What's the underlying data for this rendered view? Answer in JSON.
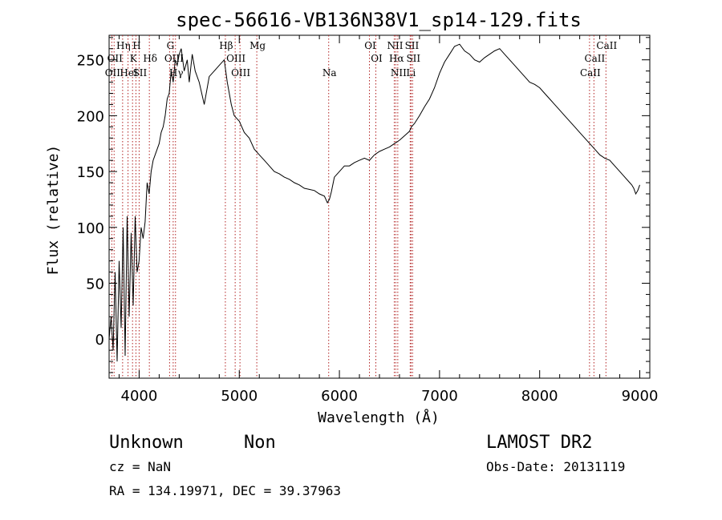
{
  "chart_data": {
    "type": "line",
    "title": "spec-56616-VB136N38V1_sp14-129.fits",
    "xlabel": "Wavelength (Å)",
    "ylabel": "Flux (relative)",
    "xlim": [
      3700,
      9100
    ],
    "ylim": [
      -35,
      272
    ],
    "xticks": [
      4000,
      5000,
      6000,
      7000,
      8000,
      9000
    ],
    "yticks": [
      0,
      50,
      100,
      150,
      200,
      250
    ],
    "grid": false,
    "series": [
      {
        "x": [
          3700,
          3720,
          3740,
          3760,
          3780,
          3800,
          3820,
          3840,
          3860,
          3880,
          3900,
          3920,
          3940,
          3960,
          3980,
          4000,
          4020,
          4040,
          4060,
          4080,
          4100,
          4120,
          4140,
          4160,
          4180,
          4200,
          4220,
          4240,
          4260,
          4280,
          4300,
          4320,
          4340,
          4360,
          4380,
          4400,
          4420,
          4450,
          4480,
          4500,
          4530,
          4560,
          4600,
          4650,
          4700,
          4750,
          4800,
          4850,
          4880,
          4900,
          4920,
          4950,
          5000,
          5050,
          5100,
          5150,
          5200,
          5250,
          5300,
          5350,
          5400,
          5450,
          5500,
          5550,
          5600,
          5650,
          5700,
          5750,
          5800,
          5850,
          5880,
          5900,
          5920,
          5950,
          6000,
          6050,
          6100,
          6150,
          6200,
          6250,
          6300,
          6350,
          6400,
          6450,
          6500,
          6550,
          6600,
          6650,
          6700,
          6720,
          6750,
          6800,
          6850,
          6900,
          6950,
          7000,
          7050,
          7100,
          7150,
          7200,
          7250,
          7300,
          7350,
          7400,
          7450,
          7500,
          7550,
          7600,
          7650,
          7700,
          7750,
          7800,
          7850,
          7900,
          7950,
          8000,
          8050,
          8100,
          8150,
          8200,
          8250,
          8300,
          8350,
          8400,
          8450,
          8500,
          8550,
          8600,
          8650,
          8700,
          8750,
          8800,
          8850,
          8900,
          8920,
          8940,
          8960,
          8980,
          9000
        ],
        "y": [
          0,
          20,
          -10,
          60,
          -20,
          70,
          10,
          100,
          -15,
          110,
          20,
          95,
          30,
          110,
          60,
          70,
          100,
          90,
          105,
          140,
          130,
          150,
          160,
          165,
          170,
          175,
          185,
          190,
          200,
          215,
          220,
          240,
          230,
          250,
          245,
          255,
          260,
          240,
          250,
          230,
          255,
          240,
          230,
          210,
          235,
          240,
          245,
          250,
          230,
          220,
          210,
          200,
          195,
          185,
          180,
          170,
          165,
          160,
          155,
          150,
          148,
          145,
          143,
          140,
          138,
          135,
          134,
          133,
          130,
          128,
          122,
          125,
          132,
          145,
          150,
          155,
          155,
          158,
          160,
          162,
          160,
          165,
          168,
          170,
          172,
          175,
          178,
          182,
          186,
          190,
          193,
          200,
          208,
          215,
          225,
          238,
          248,
          255,
          262,
          264,
          258,
          255,
          250,
          248,
          252,
          255,
          258,
          260,
          255,
          250,
          245,
          240,
          235,
          230,
          228,
          225,
          220,
          215,
          210,
          205,
          200,
          195,
          190,
          185,
          180,
          175,
          170,
          165,
          162,
          160,
          155,
          150,
          145,
          140,
          138,
          135,
          130,
          133,
          138
        ]
      }
    ],
    "lines": [
      {
        "wl": 3727,
        "label": "OII",
        "row": 3
      },
      {
        "wl": 3750,
        "label": "OII",
        "row": 2
      },
      {
        "wl": 3835,
        "label": "Hη",
        "row": 1
      },
      {
        "wl": 3889,
        "label": "HeI",
        "row": 3
      },
      {
        "wl": 3934,
        "label": "K",
        "row": 2
      },
      {
        "wl": 3968,
        "label": "H",
        "row": 1
      },
      {
        "wl": 4000,
        "label": "SII",
        "row": 3
      },
      {
        "wl": 4102,
        "label": "Hδ",
        "row": 2
      },
      {
        "wl": 4304,
        "label": "G",
        "row": 1
      },
      {
        "wl": 4340,
        "label": "OIII",
        "row": 2
      },
      {
        "wl": 4363,
        "label": "Hγ",
        "row": 3
      },
      {
        "wl": 4861,
        "label": "Hβ",
        "row": 1
      },
      {
        "wl": 4959,
        "label": "OIII",
        "row": 2
      },
      {
        "wl": 5007,
        "label": "OIII",
        "row": 3
      },
      {
        "wl": 5175,
        "label": "Mg",
        "row": 1
      },
      {
        "wl": 5893,
        "label": "Na",
        "row": 3
      },
      {
        "wl": 6300,
        "label": "OI",
        "row": 1
      },
      {
        "wl": 6364,
        "label": "OI",
        "row": 2
      },
      {
        "wl": 6548,
        "label": "NII",
        "row": 1
      },
      {
        "wl": 6563,
        "label": "Hα",
        "row": 2
      },
      {
        "wl": 6583,
        "label": "NII",
        "row": 3
      },
      {
        "wl": 6707,
        "label": "Li",
        "row": 3
      },
      {
        "wl": 6716,
        "label": "SII",
        "row": 1
      },
      {
        "wl": 6731,
        "label": "SII",
        "row": 2
      },
      {
        "wl": 8498,
        "label": "CaII",
        "row": 3
      },
      {
        "wl": 8542,
        "label": "CaII",
        "row": 2
      },
      {
        "wl": 8662,
        "label": "CaII",
        "row": 1
      }
    ]
  },
  "info": {
    "class": "Unknown",
    "subclass": "Non",
    "cz": "cz = NaN",
    "coords": "RA = 134.19971, DEC =  39.37963",
    "survey": "LAMOST DR2",
    "obs_date": "Obs-Date: 20131119"
  }
}
